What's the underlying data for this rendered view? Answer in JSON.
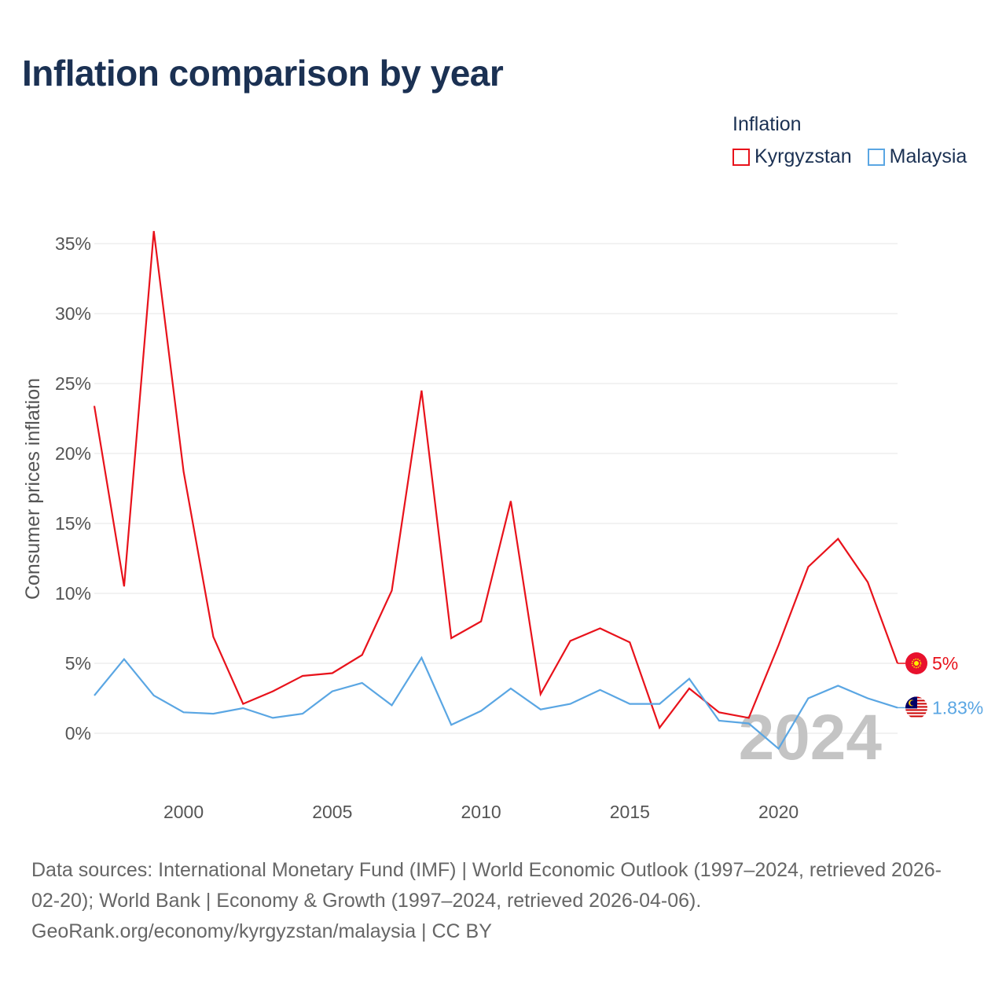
{
  "title": "Inflation comparison by year",
  "legend": {
    "title": "Inflation",
    "items": [
      {
        "label": "Kyrgyzstan",
        "color": "#e8121b"
      },
      {
        "label": "Malaysia",
        "color": "#5aa6e3"
      }
    ]
  },
  "chart_data": {
    "type": "line",
    "title": "Inflation comparison by year",
    "xlabel": "",
    "ylabel": "Consumer prices inflation",
    "x": [
      1997,
      1998,
      1999,
      2000,
      2001,
      2002,
      2003,
      2004,
      2005,
      2006,
      2007,
      2008,
      2009,
      2010,
      2011,
      2012,
      2013,
      2014,
      2015,
      2016,
      2017,
      2018,
      2019,
      2020,
      2021,
      2022,
      2023,
      2024
    ],
    "xlim": [
      1997,
      2024
    ],
    "ylim": [
      -4,
      37
    ],
    "x_ticks": [
      2000,
      2005,
      2010,
      2015,
      2020
    ],
    "y_ticks": [
      0,
      5,
      10,
      15,
      20,
      25,
      30,
      35
    ],
    "y_tick_labels": [
      "0%",
      "5%",
      "10%",
      "15%",
      "20%",
      "25%",
      "30%",
      "35%"
    ],
    "grid": true,
    "legend_position": "top-right",
    "series": [
      {
        "name": "Kyrgyzstan",
        "color": "#e8121b",
        "values": [
          23.4,
          10.5,
          35.9,
          18.7,
          6.9,
          2.1,
          3.0,
          4.1,
          4.3,
          5.6,
          10.2,
          24.5,
          6.8,
          8.0,
          16.6,
          2.8,
          6.6,
          7.5,
          6.5,
          0.4,
          3.2,
          1.5,
          1.1,
          6.3,
          11.9,
          13.9,
          10.8,
          5.0
        ],
        "end_label": "5%"
      },
      {
        "name": "Malaysia",
        "color": "#5aa6e3",
        "values": [
          2.7,
          5.3,
          2.7,
          1.5,
          1.4,
          1.8,
          1.1,
          1.4,
          3.0,
          3.6,
          2.0,
          5.4,
          0.6,
          1.6,
          3.2,
          1.7,
          2.1,
          3.1,
          2.1,
          2.1,
          3.9,
          0.9,
          0.7,
          -1.1,
          2.5,
          3.4,
          2.5,
          1.83
        ],
        "end_label": "1.83%"
      }
    ],
    "annotation_year": "2024"
  },
  "sources": {
    "line1": "Data sources: International Monetary Fund (IMF) | World Economic Outlook (1997–2024, retrieved 2026-",
    "line2": "02-20); World Bank | Economy & Growth (1997–2024, retrieved 2026-04-06).",
    "line3": "GeoRank.org/economy/kyrgyzstan/malaysia | CC BY"
  }
}
